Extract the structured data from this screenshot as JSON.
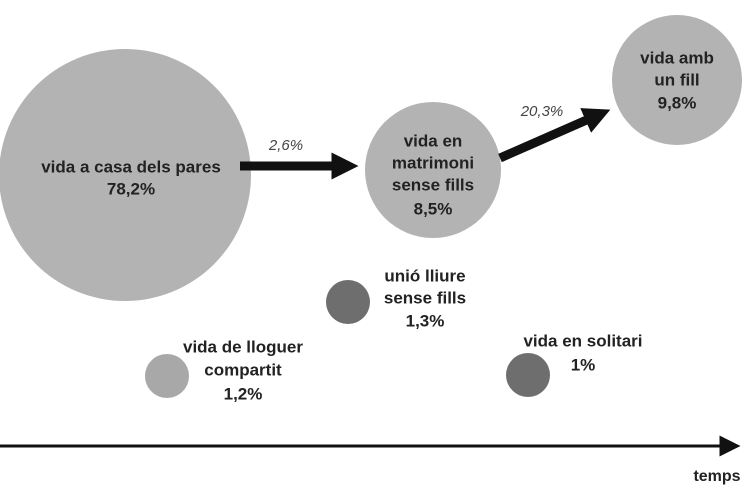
{
  "nodes": [
    {
      "label": [
        "vida a casa dels pares"
      ],
      "value": "78,2%"
    },
    {
      "label": [
        "vida en",
        "matrimoni",
        "sense fills"
      ],
      "value": "8,5%"
    },
    {
      "label": [
        "vida amb",
        "un fill"
      ],
      "value": "9,8%"
    },
    {
      "label": [
        "unió lliure",
        "sense fills"
      ],
      "value": "1,3%"
    },
    {
      "label": [
        "vida de lloguer",
        "compartit"
      ],
      "value": "1,2%"
    },
    {
      "label": [
        "vida en solitari"
      ],
      "value": "1%"
    }
  ],
  "edges": [
    {
      "label": "2,6%"
    },
    {
      "label": "20,3%"
    }
  ],
  "axis": {
    "label": "temps"
  }
}
